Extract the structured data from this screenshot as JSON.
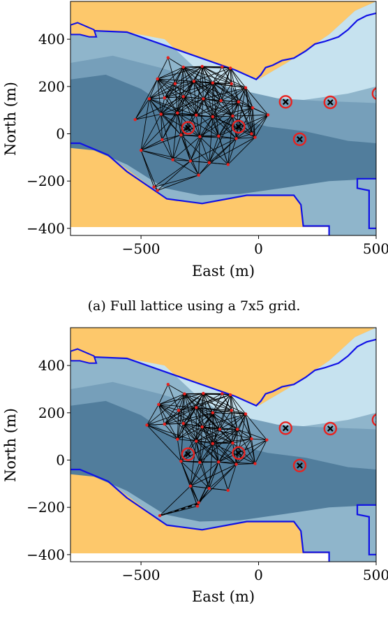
{
  "figure": {
    "caption_a": "(a) Full lattice using a 7x5 grid."
  },
  "chart_data": [
    {
      "type": "scatter",
      "title": "",
      "xlabel": "East (m)",
      "ylabel": "North (m)",
      "xlim": [
        -800,
        500
      ],
      "ylim": [
        -430,
        560
      ],
      "xticks": [
        -500,
        0,
        500
      ],
      "yticks": [
        -400,
        -200,
        0,
        200,
        400
      ],
      "xtick_labels": [
        "−500",
        "0",
        "500"
      ],
      "ytick_labels": [
        "−400",
        "−200",
        "0",
        "200",
        "400"
      ],
      "grid": false,
      "colors": {
        "land": "#fdc86b",
        "water_light": "#c6e2ef",
        "water_mid1": "#8fb5cb",
        "water_mid2": "#769fba",
        "water_deep": "#517d9c",
        "shore": "#1010e6",
        "edge": "#000000",
        "node": "#e8221f",
        "target": "#e8221f"
      },
      "targets": [
        {
          "x": -300,
          "y": 25
        },
        {
          "x": -85,
          "y": 30
        },
        {
          "x": 115,
          "y": 135
        },
        {
          "x": 305,
          "y": 133
        },
        {
          "x": 175,
          "y": -23
        },
        {
          "x": 510,
          "y": 170
        }
      ],
      "nodes": [
        {
          "x": -385,
          "y": 322
        },
        {
          "x": -320,
          "y": 282
        },
        {
          "x": -240,
          "y": 285
        },
        {
          "x": -155,
          "y": 283
        },
        {
          "x": -120,
          "y": 278
        },
        {
          "x": -430,
          "y": 232
        },
        {
          "x": -355,
          "y": 212
        },
        {
          "x": -275,
          "y": 222
        },
        {
          "x": -195,
          "y": 215
        },
        {
          "x": -115,
          "y": 212
        },
        {
          "x": -55,
          "y": 195
        },
        {
          "x": -465,
          "y": 148
        },
        {
          "x": -400,
          "y": 152
        },
        {
          "x": -320,
          "y": 157
        },
        {
          "x": -235,
          "y": 148
        },
        {
          "x": -160,
          "y": 140
        },
        {
          "x": -85,
          "y": 135
        },
        {
          "x": -25,
          "y": 110
        },
        {
          "x": -525,
          "y": 60
        },
        {
          "x": -415,
          "y": 83
        },
        {
          "x": -345,
          "y": 88
        },
        {
          "x": -265,
          "y": 79
        },
        {
          "x": -195,
          "y": 72
        },
        {
          "x": -110,
          "y": 75
        },
        {
          "x": -30,
          "y": 0
        },
        {
          "x": 40,
          "y": 80
        },
        {
          "x": -500,
          "y": -70
        },
        {
          "x": -410,
          "y": -25
        },
        {
          "x": -330,
          "y": -5
        },
        {
          "x": -250,
          "y": -12
        },
        {
          "x": -170,
          "y": -10
        },
        {
          "x": -95,
          "y": -20
        },
        {
          "x": -15,
          "y": -15
        },
        {
          "x": -365,
          "y": -110
        },
        {
          "x": -290,
          "y": -115
        },
        {
          "x": -210,
          "y": -122
        },
        {
          "x": -130,
          "y": -130
        },
        {
          "x": -255,
          "y": -175
        },
        {
          "x": -445,
          "y": -225
        },
        {
          "x": -430,
          "y": -240
        }
      ]
    },
    {
      "type": "scatter",
      "title": "",
      "xlabel": "East (m)",
      "ylabel": "North (m)",
      "xlim": [
        -800,
        500
      ],
      "ylim": [
        -430,
        560
      ],
      "xticks": [
        -500,
        0,
        500
      ],
      "yticks": [
        -400,
        -200,
        0,
        200,
        400
      ],
      "xtick_labels": [
        "−500",
        "0",
        "500"
      ],
      "ytick_labels": [
        "−400",
        "−200",
        "0",
        "200",
        "400"
      ],
      "grid": false,
      "colors": {
        "land": "#fdc86b",
        "water_light": "#c6e2ef",
        "water_mid1": "#8fb5cb",
        "water_mid2": "#769fba",
        "water_deep": "#517d9c",
        "shore": "#1010e6",
        "edge": "#000000",
        "node": "#e8221f",
        "target": "#e8221f"
      },
      "targets": [
        {
          "x": -300,
          "y": 25
        },
        {
          "x": -85,
          "y": 30
        },
        {
          "x": 115,
          "y": 135
        },
        {
          "x": 305,
          "y": 133
        },
        {
          "x": 175,
          "y": -23
        },
        {
          "x": 510,
          "y": 170
        }
      ],
      "nodes": [
        {
          "x": -385,
          "y": 320
        },
        {
          "x": -315,
          "y": 280
        },
        {
          "x": -235,
          "y": 282
        },
        {
          "x": -155,
          "y": 281
        },
        {
          "x": -120,
          "y": 276
        },
        {
          "x": -425,
          "y": 235
        },
        {
          "x": -340,
          "y": 210
        },
        {
          "x": -265,
          "y": 222
        },
        {
          "x": -195,
          "y": 200
        },
        {
          "x": -115,
          "y": 210
        },
        {
          "x": -55,
          "y": 195
        },
        {
          "x": -475,
          "y": 148
        },
        {
          "x": -400,
          "y": 152
        },
        {
          "x": -320,
          "y": 155
        },
        {
          "x": -240,
          "y": 140
        },
        {
          "x": -165,
          "y": 130
        },
        {
          "x": -90,
          "y": 130
        },
        {
          "x": -30,
          "y": 90
        },
        {
          "x": -345,
          "y": 88
        },
        {
          "x": -265,
          "y": 80
        },
        {
          "x": -195,
          "y": 70
        },
        {
          "x": -110,
          "y": 72
        },
        {
          "x": 35,
          "y": 85
        },
        {
          "x": -330,
          "y": -5
        },
        {
          "x": -250,
          "y": -10
        },
        {
          "x": -170,
          "y": -8
        },
        {
          "x": -95,
          "y": -18
        },
        {
          "x": -15,
          "y": -15
        },
        {
          "x": -290,
          "y": -110
        },
        {
          "x": -210,
          "y": -120
        },
        {
          "x": -130,
          "y": -128
        },
        {
          "x": -255,
          "y": -180
        },
        {
          "x": -260,
          "y": -195
        },
        {
          "x": -420,
          "y": -235
        }
      ],
      "dashed_edge": {
        "from": {
          "x": -255,
          "y": -185
        },
        "to": {
          "x": -420,
          "y": -235
        }
      }
    }
  ]
}
